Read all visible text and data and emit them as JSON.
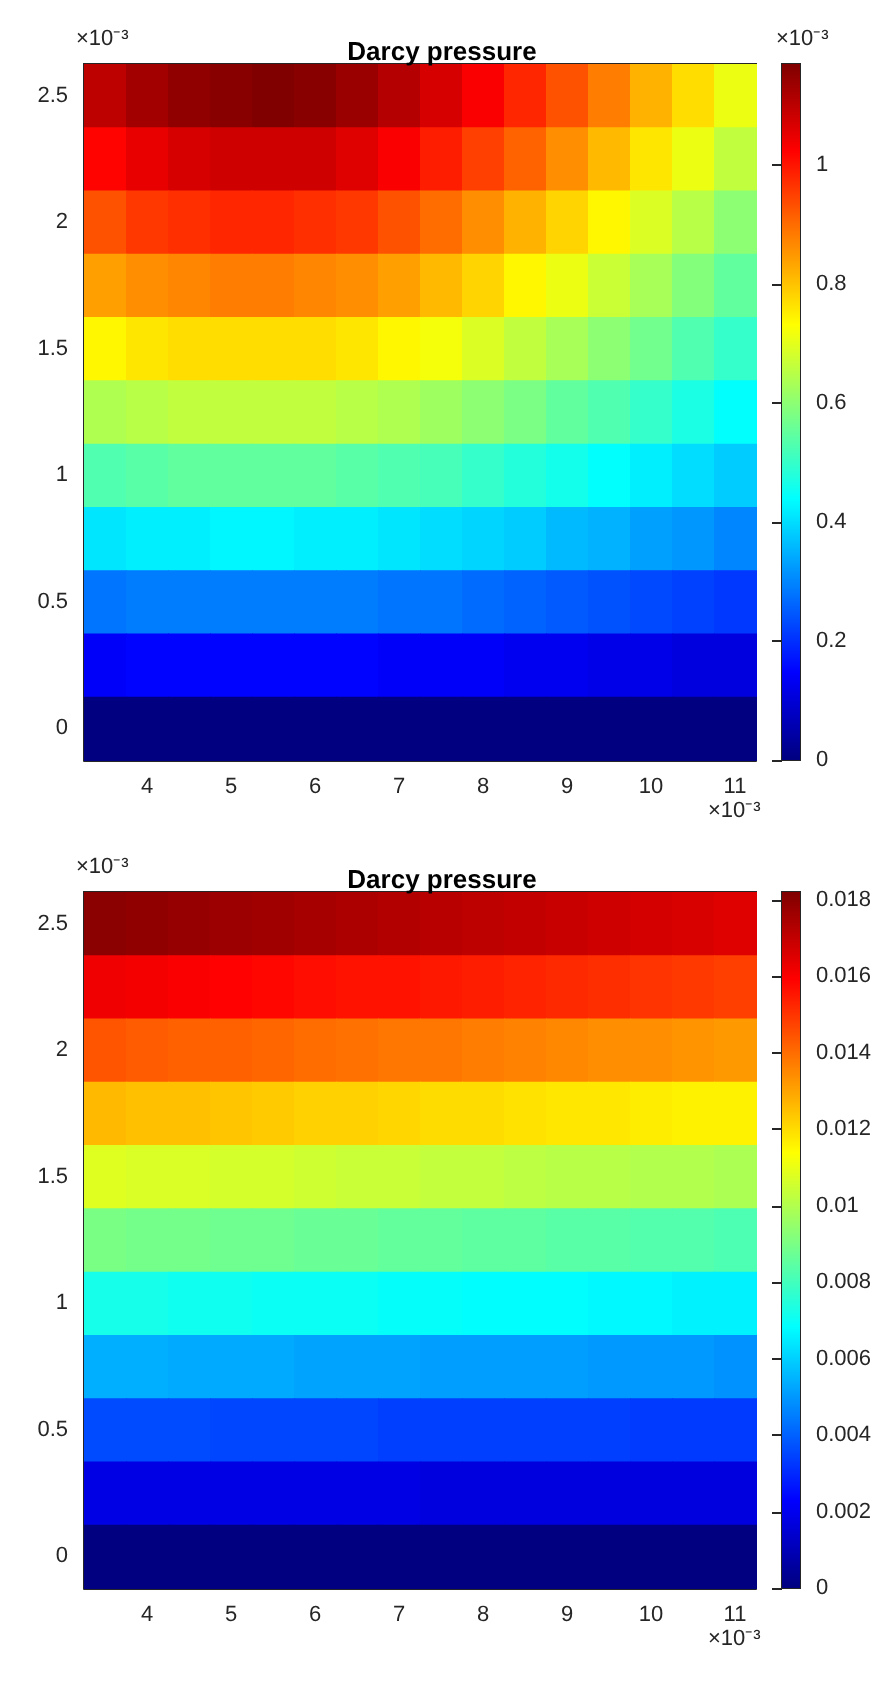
{
  "chart_data": [
    {
      "type": "heatmap",
      "title": "Darcy pressure",
      "clim": [
        0,
        1.17
      ],
      "cticks": [
        0,
        0.2,
        0.4,
        0.6,
        0.8,
        1
      ],
      "annotations": [
        "×10⁻³",
        "×10⁻³",
        "×10⁻³"
      ],
      "categories": [
        null,
        "4",
        null,
        "5",
        null,
        "6",
        null,
        "7",
        null,
        "8",
        null,
        "9",
        null,
        "10",
        null,
        "11"
      ],
      "y_categories": [
        "2.5",
        null,
        "2",
        null,
        "1.5",
        null,
        "1",
        null,
        "0.5",
        null,
        "0"
      ],
      "cells": [
        [
          1.1,
          1.13,
          1.15,
          1.16,
          1.17,
          1.16,
          1.14,
          1.11,
          1.07,
          1.03,
          0.98,
          0.93,
          0.88,
          0.82,
          0.77,
          0.71
        ],
        [
          1.02,
          1.05,
          1.07,
          1.08,
          1.08,
          1.08,
          1.06,
          1.03,
          0.99,
          0.95,
          0.91,
          0.86,
          0.81,
          0.76,
          0.71,
          0.66
        ],
        [
          0.93,
          0.96,
          0.97,
          0.98,
          0.98,
          0.97,
          0.96,
          0.93,
          0.9,
          0.86,
          0.82,
          0.78,
          0.74,
          0.69,
          0.65,
          0.6
        ],
        [
          0.84,
          0.86,
          0.87,
          0.88,
          0.88,
          0.87,
          0.86,
          0.84,
          0.81,
          0.78,
          0.74,
          0.71,
          0.67,
          0.63,
          0.59,
          0.55
        ],
        [
          0.74,
          0.76,
          0.77,
          0.77,
          0.77,
          0.77,
          0.76,
          0.74,
          0.72,
          0.69,
          0.66,
          0.63,
          0.6,
          0.57,
          0.53,
          0.5
        ],
        [
          0.64,
          0.65,
          0.66,
          0.66,
          0.66,
          0.66,
          0.65,
          0.64,
          0.62,
          0.6,
          0.58,
          0.55,
          0.53,
          0.5,
          0.47,
          0.44
        ],
        [
          0.53,
          0.54,
          0.55,
          0.55,
          0.55,
          0.55,
          0.54,
          0.53,
          0.52,
          0.5,
          0.48,
          0.46,
          0.44,
          0.42,
          0.4,
          0.38
        ],
        [
          0.41,
          0.42,
          0.42,
          0.43,
          0.43,
          0.42,
          0.42,
          0.41,
          0.4,
          0.39,
          0.38,
          0.36,
          0.35,
          0.33,
          0.32,
          0.3
        ],
        [
          0.28,
          0.29,
          0.29,
          0.29,
          0.29,
          0.29,
          0.29,
          0.28,
          0.28,
          0.27,
          0.26,
          0.25,
          0.24,
          0.23,
          0.22,
          0.21
        ],
        [
          0.14,
          0.15,
          0.15,
          0.15,
          0.15,
          0.15,
          0.15,
          0.14,
          0.14,
          0.14,
          0.13,
          0.13,
          0.12,
          0.12,
          0.11,
          0.11
        ],
        [
          0,
          0,
          0,
          0,
          0,
          0,
          0,
          0,
          0,
          0,
          0,
          0,
          0,
          0,
          0,
          0
        ]
      ]
    },
    {
      "type": "heatmap",
      "title": "Darcy pressure",
      "clim": [
        0,
        0.0182
      ],
      "cticks": [
        0,
        0.002,
        0.004,
        0.006,
        0.008,
        0.01,
        0.012,
        0.014,
        0.016,
        0.018
      ],
      "annotations": [
        "×10⁻³",
        "×10⁻³"
      ],
      "categories": [
        null,
        "4",
        null,
        "5",
        null,
        "6",
        null,
        "7",
        null,
        "8",
        null,
        "9",
        null,
        "10",
        null,
        "11"
      ],
      "y_categories": [
        "2.5",
        null,
        "2",
        null,
        "1.5",
        null,
        "1",
        null,
        "0.5",
        null,
        "0"
      ],
      "cells": [
        [
          0.018,
          0.0179,
          0.0178,
          0.0177,
          0.0176,
          0.0175,
          0.0174,
          0.0173,
          0.0172,
          0.0171,
          0.017,
          0.0169,
          0.0168,
          0.0167,
          0.0166,
          0.0165
        ],
        [
          0.0162,
          0.0161,
          0.016,
          0.0159,
          0.0158,
          0.0157,
          0.0156,
          0.0156,
          0.0155,
          0.0154,
          0.0153,
          0.0152,
          0.0151,
          0.015,
          0.0149,
          0.0148
        ],
        [
          0.0144,
          0.0143,
          0.0142,
          0.0142,
          0.0141,
          0.014,
          0.0139,
          0.0138,
          0.0138,
          0.0137,
          0.0136,
          0.0135,
          0.0134,
          0.0134,
          0.0133,
          0.0132
        ],
        [
          0.0126,
          0.0125,
          0.0125,
          0.0124,
          0.0123,
          0.0122,
          0.0122,
          0.0121,
          0.012,
          0.012,
          0.0119,
          0.0118,
          0.0118,
          0.0117,
          0.0116,
          0.0116
        ],
        [
          0.0108,
          0.0107,
          0.0107,
          0.0106,
          0.0106,
          0.0105,
          0.0104,
          0.0104,
          0.0103,
          0.0103,
          0.0102,
          0.0101,
          0.0101,
          0.01,
          0.01,
          0.0099
        ],
        [
          0.009,
          0.0089,
          0.0089,
          0.0088,
          0.0088,
          0.0087,
          0.0087,
          0.0086,
          0.0086,
          0.0085,
          0.0085,
          0.0084,
          0.0084,
          0.0083,
          0.0083,
          0.0082
        ],
        [
          0.0072,
          0.0072,
          0.0071,
          0.0071,
          0.007,
          0.007,
          0.007,
          0.0069,
          0.0069,
          0.0068,
          0.0068,
          0.0068,
          0.0067,
          0.0067,
          0.0066,
          0.0066
        ],
        [
          0.0054,
          0.0054,
          0.0053,
          0.0053,
          0.0053,
          0.0052,
          0.0052,
          0.0052,
          0.0051,
          0.0051,
          0.0051,
          0.0051,
          0.005,
          0.005,
          0.005,
          0.0049
        ],
        [
          0.0036,
          0.0036,
          0.0036,
          0.0035,
          0.0035,
          0.0035,
          0.0035,
          0.0034,
          0.0034,
          0.0034,
          0.0034,
          0.0034,
          0.0034,
          0.0033,
          0.0033,
          0.0033
        ],
        [
          0.0018,
          0.0018,
          0.0018,
          0.0018,
          0.0018,
          0.0018,
          0.0018,
          0.0018,
          0.0017,
          0.0017,
          0.0017,
          0.0017,
          0.0017,
          0.0017,
          0.0017,
          0.0017
        ],
        [
          0,
          0,
          0,
          0,
          0,
          0,
          0,
          0,
          0,
          0,
          0,
          0,
          0,
          0,
          0,
          0
        ]
      ]
    }
  ]
}
